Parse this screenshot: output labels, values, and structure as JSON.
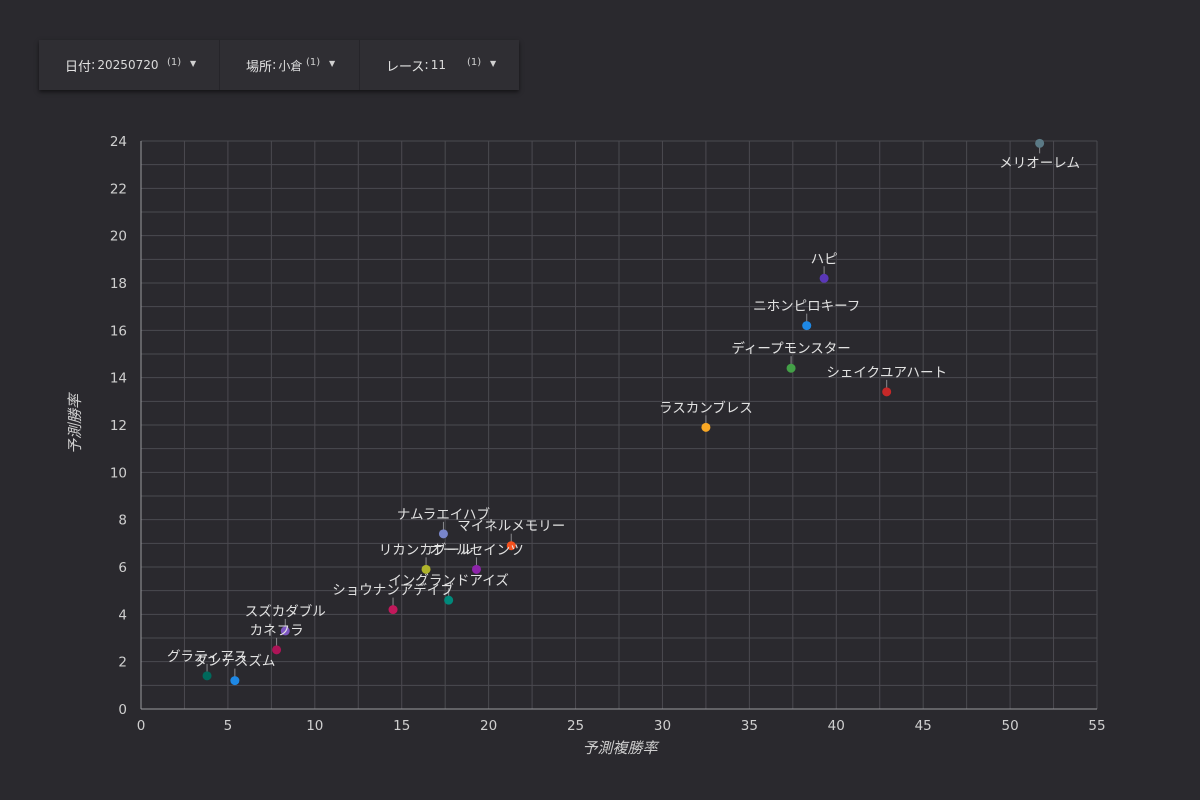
{
  "filters": [
    {
      "label": "日付",
      "value": "20250720",
      "count": "(1)"
    },
    {
      "label": "場所",
      "value": "小倉",
      "count": "(1)"
    },
    {
      "label": "レース",
      "value": "11",
      "count": "(1)"
    }
  ],
  "chart_data": {
    "type": "scatter",
    "xlabel": "予測複勝率",
    "ylabel": "予測勝率",
    "xlim": [
      0,
      55
    ],
    "ylim": [
      0,
      24
    ],
    "xticks": [
      0,
      5,
      10,
      15,
      20,
      25,
      30,
      35,
      40,
      45,
      50,
      55
    ],
    "yticks": [
      0,
      2,
      4,
      6,
      8,
      10,
      12,
      14,
      16,
      18,
      20,
      22,
      24
    ],
    "grid": true,
    "points": [
      {
        "name": "メリオーレム",
        "x": 51.7,
        "y": 23.9,
        "color": "#5b7a86"
      },
      {
        "name": "ハピ",
        "x": 39.3,
        "y": 18.2,
        "color": "#5a37b8"
      },
      {
        "name": "ニホンピロキーフ",
        "x": 38.3,
        "y": 16.2,
        "color": "#1e88e5"
      },
      {
        "name": "ディープモンスター",
        "x": 37.4,
        "y": 14.4,
        "color": "#43a047"
      },
      {
        "name": "シェイクユアハート",
        "x": 42.9,
        "y": 13.4,
        "color": "#c62828"
      },
      {
        "name": "ラスカンブレス",
        "x": 32.5,
        "y": 11.9,
        "color": "#f9a825"
      },
      {
        "name": "ナムラエイハブ",
        "x": 17.4,
        "y": 7.4,
        "color": "#7986cb"
      },
      {
        "name": "マイネルメモリー",
        "x": 21.3,
        "y": 6.9,
        "color": "#f4511e"
      },
      {
        "name": "リカンカブール",
        "x": 16.4,
        "y": 5.9,
        "color": "#afb42b"
      },
      {
        "name": "オールセインツ",
        "x": 19.3,
        "y": 5.9,
        "color": "#8e24aa"
      },
      {
        "name": "イングランドアイズ",
        "x": 17.7,
        "y": 4.6,
        "color": "#00897b"
      },
      {
        "name": "ショウナンアデイブ",
        "x": 14.5,
        "y": 4.2,
        "color": "#c2185b"
      },
      {
        "name": "スズカダブル",
        "x": 8.3,
        "y": 3.3,
        "color": "#7e57c2"
      },
      {
        "name": "カネフラ",
        "x": 7.8,
        "y": 2.5,
        "color": "#ad1457"
      },
      {
        "name": "グラティアス",
        "x": 3.8,
        "y": 1.4,
        "color": "#00695c"
      },
      {
        "name": "ダンテスズム",
        "x": 5.4,
        "y": 1.2,
        "color": "#1e88e5"
      }
    ]
  }
}
